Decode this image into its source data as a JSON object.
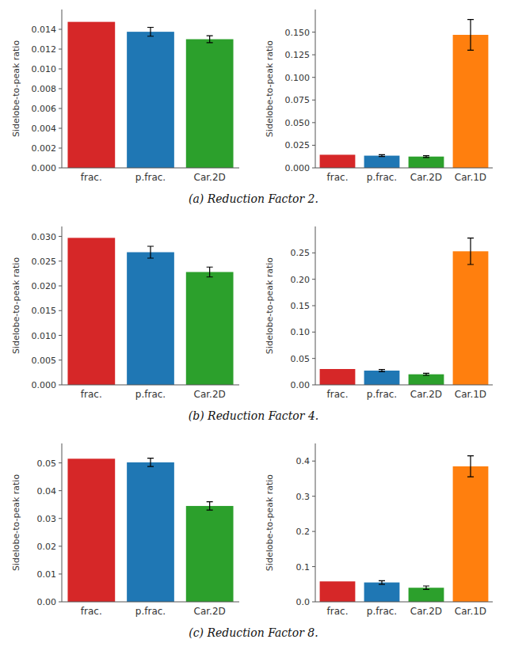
{
  "chart_data": [
    {
      "type": "bar",
      "title": "(a) Reduction Factor 2.",
      "ylabel": "Sidelobe-to-peak ratio",
      "categories": [
        "frac.",
        "p.frac.",
        "Car.2D"
      ],
      "values": [
        0.01475,
        0.01375,
        0.013
      ],
      "errors": [
        0,
        0.00045,
        0.00035
      ],
      "colors": [
        "#d62728",
        "#1f77b4",
        "#2ca02c"
      ],
      "ylim": [
        0,
        0.016
      ],
      "yticks": [
        {
          "value": 0,
          "label": "0.000"
        },
        0.002,
        0.004,
        0.006,
        0.008,
        {
          "value": 0.01,
          "label": "0.010"
        },
        0.012,
        0.014
      ],
      "grid": false
    },
    {
      "type": "bar",
      "ylabel": "Sidelobe-to-peak ratio",
      "categories": [
        "frac.",
        "p.frac.",
        "Car.2D",
        "Car.1D"
      ],
      "values": [
        0.0145,
        0.0135,
        0.0125,
        0.147
      ],
      "errors": [
        0,
        0.001,
        0.001,
        0.017
      ],
      "colors": [
        "#d62728",
        "#1f77b4",
        "#2ca02c",
        "#ff7f0e"
      ],
      "ylim": [
        0,
        0.175
      ],
      "yticks": [
        {
          "value": 0,
          "label": "0.000"
        },
        0.025,
        {
          "value": 0.05,
          "label": "0.050"
        },
        0.075,
        {
          "value": 0.1,
          "label": "0.100"
        },
        0.125,
        {
          "value": 0.15,
          "label": "0.150"
        }
      ],
      "grid": false
    },
    {
      "type": "bar",
      "title": "(b) Reduction Factor 4.",
      "ylabel": "Sidelobe-to-peak ratio",
      "categories": [
        "frac.",
        "p.frac.",
        "Car.2D"
      ],
      "values": [
        0.0297,
        0.0268,
        0.0228
      ],
      "errors": [
        0,
        0.0012,
        0.001
      ],
      "colors": [
        "#d62728",
        "#1f77b4",
        "#2ca02c"
      ],
      "ylim": [
        0,
        0.032
      ],
      "yticks": [
        {
          "value": 0,
          "label": "0.000"
        },
        0.005,
        {
          "value": 0.01,
          "label": "0.010"
        },
        0.015,
        {
          "value": 0.02,
          "label": "0.020"
        },
        0.025,
        {
          "value": 0.03,
          "label": "0.030"
        }
      ],
      "grid": false
    },
    {
      "type": "bar",
      "ylabel": "Sidelobe-to-peak ratio",
      "categories": [
        "frac.",
        "p.frac.",
        "Car.2D",
        "Car.1D"
      ],
      "values": [
        0.03,
        0.027,
        0.02,
        0.253
      ],
      "errors": [
        0,
        0.002,
        0.002,
        0.025
      ],
      "colors": [
        "#d62728",
        "#1f77b4",
        "#2ca02c",
        "#ff7f0e"
      ],
      "ylim": [
        0,
        0.3
      ],
      "yticks": [
        {
          "value": 0,
          "label": "0.00"
        },
        0.05,
        {
          "value": 0.1,
          "label": "0.10"
        },
        0.15,
        {
          "value": 0.2,
          "label": "0.20"
        },
        0.25
      ],
      "grid": false
    },
    {
      "type": "bar",
      "title": "(c) Reduction Factor 8.",
      "ylabel": "Sidelobe-to-peak ratio",
      "categories": [
        "frac.",
        "p.frac.",
        "Car.2D"
      ],
      "values": [
        0.0515,
        0.0502,
        0.0345
      ],
      "errors": [
        0,
        0.0015,
        0.0015
      ],
      "colors": [
        "#d62728",
        "#1f77b4",
        "#2ca02c"
      ],
      "ylim": [
        0,
        0.057
      ],
      "yticks": [
        {
          "value": 0,
          "label": "0.00"
        },
        0.01,
        0.02,
        0.03,
        0.04,
        0.05
      ],
      "grid": false
    },
    {
      "type": "bar",
      "ylabel": "Sidelobe-to-peak ratio",
      "categories": [
        "frac.",
        "p.frac.",
        "Car.2D",
        "Car.1D"
      ],
      "values": [
        0.058,
        0.055,
        0.04,
        0.385
      ],
      "errors": [
        0,
        0.005,
        0.005,
        0.03
      ],
      "colors": [
        "#d62728",
        "#1f77b4",
        "#2ca02c",
        "#ff7f0e"
      ],
      "ylim": [
        0,
        0.45
      ],
      "yticks": [
        {
          "value": 0,
          "label": "0.0"
        },
        0.1,
        0.2,
        0.3,
        0.4
      ],
      "grid": false
    }
  ]
}
